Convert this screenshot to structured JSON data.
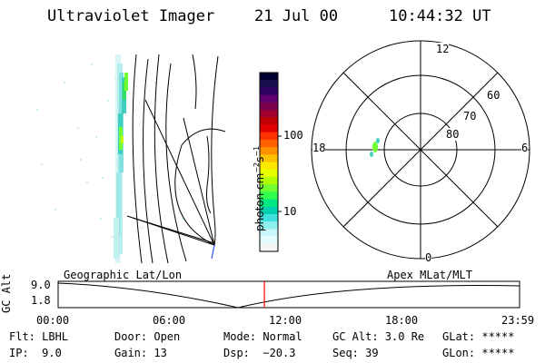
{
  "header": {
    "instrument": "Ultraviolet Imager",
    "date": "21 Jul 00",
    "time": "10:44:32 UT"
  },
  "colorbar": {
    "unit_label": "photon cm",
    "unit_exp1": "−2",
    "unit_s": "s",
    "unit_exp2": "−1",
    "ticks": [
      "100",
      "10"
    ],
    "colors": [
      "#000033",
      "#1a0f4d",
      "#300060",
      "#600070",
      "#7a0050",
      "#a00030",
      "#c00000",
      "#e00000",
      "#ff3000",
      "#ff6000",
      "#ff9000",
      "#ffc000",
      "#ffe800",
      "#e8ff00",
      "#b0ff00",
      "#70ff30",
      "#30ff50",
      "#00e880",
      "#00d0b0",
      "#40e0e0",
      "#90f0f0",
      "#c8f8f8",
      "#e6fcfc",
      "#f4f4f4"
    ]
  },
  "polar": {
    "mlt_labels": [
      "12",
      "18",
      "6",
      "0"
    ],
    "lat_labels": [
      "60",
      "70",
      "80"
    ]
  },
  "timeline": {
    "axis_label": "GC Alt",
    "y_ticks": [
      "9.0",
      "1.8"
    ],
    "left_title": "Geographic Lat/Lon",
    "right_title": "Apex MLat/MLT",
    "x_ticks": [
      "00:00",
      "06:00",
      "12:00",
      "18:00",
      "23:59"
    ],
    "current_time_fraction": 0.447,
    "marker_color": "#ff0000"
  },
  "info": {
    "flt": "Flt: LBHL",
    "door": "Door: Open",
    "mode": "Mode: Normal",
    "gc_alt": "GC Alt: 3.0 Re",
    "glat": "GLat: *****",
    "ip": "IP:  9.0",
    "gain": "Gain: 13",
    "dsp": "Dsp:  −20.3",
    "seq": "Seq: 39",
    "glon": "GLon: *****"
  }
}
